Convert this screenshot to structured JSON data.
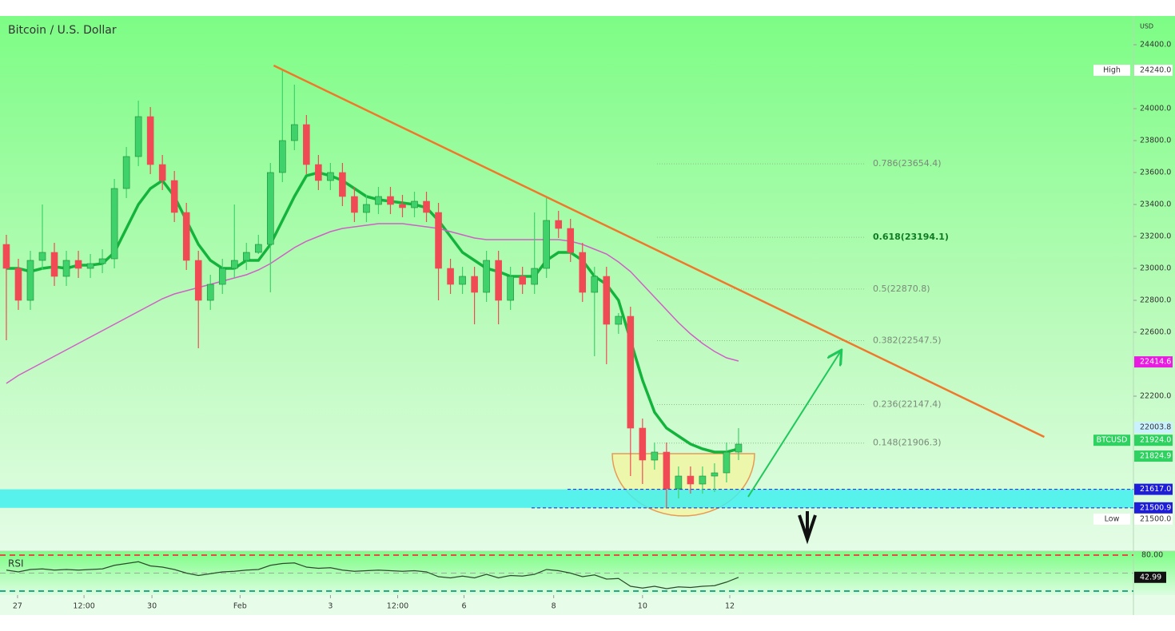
{
  "chart_data": {
    "type": "candlestick",
    "title": "Bitcoin / U.S. Dollar",
    "currency": "USD",
    "ylim": [
      21230,
      24580
    ],
    "yticks": [
      {
        "value": 24400,
        "label": "24400.0"
      },
      {
        "value": 24000,
        "label": "24000.0"
      },
      {
        "value": 23800,
        "label": "23800.0"
      },
      {
        "value": 23600,
        "label": "23600.0"
      },
      {
        "value": 23400,
        "label": "23400.0"
      },
      {
        "value": 23200,
        "label": "23200.0"
      },
      {
        "value": 23000,
        "label": "23000.0"
      },
      {
        "value": 22800,
        "label": "22800.0"
      },
      {
        "value": 22600,
        "label": "22600.0"
      },
      {
        "value": 22200,
        "label": "22200.0"
      }
    ],
    "xlim": [
      -0.53,
      93.9
    ],
    "xticks": [
      {
        "value": 0.93,
        "label": "27"
      },
      {
        "value": 6.47,
        "label": "12:00"
      },
      {
        "value": 12.13,
        "label": "30"
      },
      {
        "value": 19.47,
        "label": "Feb"
      },
      {
        "value": 27,
        "label": "3"
      },
      {
        "value": 32.6,
        "label": "12:00"
      },
      {
        "value": 38.13,
        "label": "6"
      },
      {
        "value": 45.6,
        "label": "8"
      },
      {
        "value": 53,
        "label": "10"
      },
      {
        "value": 60.27,
        "label": "12"
      }
    ],
    "up_color": "#3fd26a",
    "down_color": "#f04b55",
    "candles": [
      {
        "o": 23150,
        "h": 23210,
        "l": 22550,
        "c": 23000
      },
      {
        "o": 23000,
        "h": 23060,
        "l": 22740,
        "c": 22800
      },
      {
        "o": 22800,
        "h": 23110,
        "l": 22740,
        "c": 23050
      },
      {
        "o": 23050,
        "h": 23400,
        "l": 22990,
        "c": 23100
      },
      {
        "o": 23100,
        "h": 23160,
        "l": 22890,
        "c": 22950
      },
      {
        "o": 22950,
        "h": 23110,
        "l": 22890,
        "c": 23050
      },
      {
        "o": 23050,
        "h": 23110,
        "l": 22940,
        "c": 23000
      },
      {
        "o": 23000,
        "h": 23090,
        "l": 22940,
        "c": 23030
      },
      {
        "o": 23030,
        "h": 23120,
        "l": 22970,
        "c": 23060
      },
      {
        "o": 23060,
        "h": 23560,
        "l": 23000,
        "c": 23500
      },
      {
        "o": 23500,
        "h": 23760,
        "l": 23440,
        "c": 23700
      },
      {
        "o": 23700,
        "h": 24050,
        "l": 23640,
        "c": 23950
      },
      {
        "o": 23950,
        "h": 24010,
        "l": 23590,
        "c": 23650
      },
      {
        "o": 23650,
        "h": 23710,
        "l": 23490,
        "c": 23550
      },
      {
        "o": 23550,
        "h": 23610,
        "l": 23290,
        "c": 23350
      },
      {
        "o": 23350,
        "h": 23410,
        "l": 22990,
        "c": 23050
      },
      {
        "o": 23050,
        "h": 23110,
        "l": 22500,
        "c": 22800
      },
      {
        "o": 22800,
        "h": 22960,
        "l": 22740,
        "c": 22900
      },
      {
        "o": 22900,
        "h": 23060,
        "l": 22840,
        "c": 23000
      },
      {
        "o": 23000,
        "h": 23400,
        "l": 22940,
        "c": 23050
      },
      {
        "o": 23050,
        "h": 23160,
        "l": 22990,
        "c": 23100
      },
      {
        "o": 23100,
        "h": 23210,
        "l": 23090,
        "c": 23150
      },
      {
        "o": 23150,
        "h": 23660,
        "l": 22850,
        "c": 23600
      },
      {
        "o": 23600,
        "h": 24240,
        "l": 23540,
        "c": 23800
      },
      {
        "o": 23800,
        "h": 24150,
        "l": 23740,
        "c": 23900
      },
      {
        "o": 23900,
        "h": 23960,
        "l": 23590,
        "c": 23650
      },
      {
        "o": 23650,
        "h": 23710,
        "l": 23490,
        "c": 23550
      },
      {
        "o": 23550,
        "h": 23660,
        "l": 23490,
        "c": 23600
      },
      {
        "o": 23600,
        "h": 23660,
        "l": 23390,
        "c": 23450
      },
      {
        "o": 23450,
        "h": 23510,
        "l": 23290,
        "c": 23350
      },
      {
        "o": 23350,
        "h": 23460,
        "l": 23290,
        "c": 23400
      },
      {
        "o": 23400,
        "h": 23510,
        "l": 23340,
        "c": 23450
      },
      {
        "o": 23450,
        "h": 23510,
        "l": 23340,
        "c": 23400
      },
      {
        "o": 23400,
        "h": 23460,
        "l": 23320,
        "c": 23380
      },
      {
        "o": 23380,
        "h": 23480,
        "l": 23320,
        "c": 23420
      },
      {
        "o": 23420,
        "h": 23480,
        "l": 23290,
        "c": 23350
      },
      {
        "o": 23350,
        "h": 23410,
        "l": 22800,
        "c": 23000
      },
      {
        "o": 23000,
        "h": 23060,
        "l": 22840,
        "c": 22900
      },
      {
        "o": 22900,
        "h": 23010,
        "l": 22840,
        "c": 22950
      },
      {
        "o": 22950,
        "h": 23010,
        "l": 22650,
        "c": 22850
      },
      {
        "o": 22850,
        "h": 23110,
        "l": 22790,
        "c": 23050
      },
      {
        "o": 23050,
        "h": 23110,
        "l": 22650,
        "c": 22800
      },
      {
        "o": 22800,
        "h": 23010,
        "l": 22740,
        "c": 22950
      },
      {
        "o": 22950,
        "h": 23010,
        "l": 22840,
        "c": 22900
      },
      {
        "o": 22900,
        "h": 23350,
        "l": 22840,
        "c": 23000
      },
      {
        "o": 23000,
        "h": 23440,
        "l": 22940,
        "c": 23300
      },
      {
        "o": 23300,
        "h": 23360,
        "l": 23190,
        "c": 23250
      },
      {
        "o": 23250,
        "h": 23310,
        "l": 23040,
        "c": 23100
      },
      {
        "o": 23100,
        "h": 23160,
        "l": 22790,
        "c": 22850
      },
      {
        "o": 22850,
        "h": 23010,
        "l": 22450,
        "c": 22950
      },
      {
        "o": 22950,
        "h": 23010,
        "l": 22400,
        "c": 22650
      },
      {
        "o": 22650,
        "h": 22720,
        "l": 22590,
        "c": 22700
      },
      {
        "o": 22700,
        "h": 22760,
        "l": 21700,
        "c": 22000
      },
      {
        "o": 22000,
        "h": 22060,
        "l": 21650,
        "c": 21800
      },
      {
        "o": 21800,
        "h": 21910,
        "l": 21740,
        "c": 21850
      },
      {
        "o": 21850,
        "h": 21910,
        "l": 21500,
        "c": 21620
      },
      {
        "o": 21620,
        "h": 21760,
        "l": 21560,
        "c": 21700
      },
      {
        "o": 21700,
        "h": 21760,
        "l": 21590,
        "c": 21650
      },
      {
        "o": 21650,
        "h": 21760,
        "l": 21590,
        "c": 21700
      },
      {
        "o": 21700,
        "h": 21780,
        "l": 21600,
        "c": 21720
      },
      {
        "o": 21720,
        "h": 21910,
        "l": 21660,
        "c": 21850
      },
      {
        "o": 21850,
        "h": 22000,
        "l": 21800,
        "c": 21900
      }
    ],
    "series": [
      {
        "color": "#14b43c",
        "width": 3.5,
        "values": [
          23000,
          23000,
          22980,
          23000,
          23010,
          23000,
          23020,
          23020,
          23030,
          23100,
          23250,
          23400,
          23500,
          23550,
          23450,
          23300,
          23150,
          23050,
          23000,
          23000,
          23050,
          23050,
          23150,
          23300,
          23450,
          23580,
          23600,
          23580,
          23550,
          23500,
          23450,
          23430,
          23420,
          23410,
          23400,
          23380,
          23300,
          23200,
          23100,
          23050,
          23000,
          22980,
          22950,
          22950,
          22950,
          23050,
          23100,
          23100,
          23050,
          22950,
          22900,
          22800,
          22550,
          22300,
          22100,
          22000,
          21950,
          21900,
          21870,
          21850,
          21850,
          21870
        ]
      },
      {
        "color": "#d15fc8",
        "width": 1.5,
        "values": [
          22280,
          22330,
          22370,
          22410,
          22450,
          22490,
          22530,
          22570,
          22610,
          22650,
          22690,
          22730,
          22770,
          22810,
          22840,
          22860,
          22880,
          22900,
          22920,
          22940,
          22960,
          22990,
          23030,
          23080,
          23130,
          23170,
          23200,
          23230,
          23250,
          23260,
          23270,
          23280,
          23280,
          23280,
          23270,
          23260,
          23250,
          23230,
          23210,
          23190,
          23180,
          23180,
          23180,
          23180,
          23180,
          23180,
          23180,
          23170,
          23150,
          23120,
          23090,
          23040,
          22980,
          22900,
          22820,
          22740,
          22660,
          22590,
          22530,
          22480,
          22440,
          22420
        ]
      }
    ],
    "fib_levels": [
      {
        "value": 23654.4,
        "label": "0.786(23654.4)"
      },
      {
        "value": 23194.1,
        "label": "0.618(23194.1)"
      },
      {
        "value": 22870.8,
        "label": "0.5(22870.8)"
      },
      {
        "value": 22547.5,
        "label": "0.382(22547.5)"
      },
      {
        "value": 22147.4,
        "label": "0.236(22147.4)"
      },
      {
        "value": 21906.3,
        "label": "0.148(21906.3)"
      }
    ],
    "zone": [
      21500.9,
      21617
    ],
    "trendline": [
      [
        22.27,
        24270
      ],
      [
        86.47,
        21945
      ]
    ],
    "arrow": [
      [
        61.8,
        21570
      ],
      [
        69.5,
        22480
      ]
    ],
    "price_labels": [
      {
        "value": 24240,
        "label": "24240.0",
        "tag": "High",
        "color": "#ffffff",
        "text_color": "#333"
      },
      {
        "value": 22414.6,
        "label": "22414.6",
        "color": "#e81ce0",
        "text_color": "#fff"
      },
      {
        "value": 22003.8,
        "label": "22003.8",
        "color": "#c9f1ff",
        "text_color": "#333"
      },
      {
        "value": 21924,
        "label": "21924.0",
        "tag": "BTCUSD",
        "color": "#2fd160",
        "text_color": "#fff"
      },
      {
        "value": 21824.9,
        "label": "21824.9",
        "color": "#2fd160",
        "text_color": "#fff"
      },
      {
        "value": 21617,
        "label": "21617.0",
        "color": "#1e1ed8",
        "text_color": "#fff"
      },
      {
        "value": 21500.9,
        "label": "21500.9",
        "color": "#1e1ed8",
        "text_color": "#fff"
      },
      {
        "value": 21500,
        "label": "21500.0",
        "tag": "Low",
        "color": "#ffffff",
        "text_color": "#333"
      }
    ],
    "rsi": {
      "name": "RSI",
      "ylim": [
        13.33,
        86.67
      ],
      "levels": [
        80,
        50,
        20
      ],
      "level_labels": [
        {
          "value": 80,
          "label": "80.00"
        }
      ],
      "value_label": "42.99",
      "values": [
        55,
        52,
        56,
        57,
        55,
        56,
        55,
        56,
        57,
        63,
        66,
        69,
        62,
        60,
        56,
        50,
        46,
        49,
        52,
        53,
        55,
        56,
        63,
        66,
        67,
        60,
        58,
        59,
        55,
        53,
        54,
        55,
        54,
        53,
        54,
        52,
        44,
        42,
        45,
        42,
        48,
        42,
        46,
        45,
        48,
        56,
        54,
        50,
        44,
        47,
        40,
        41,
        28,
        25,
        28,
        24,
        27,
        26,
        28,
        29,
        35,
        42.99
      ]
    }
  }
}
